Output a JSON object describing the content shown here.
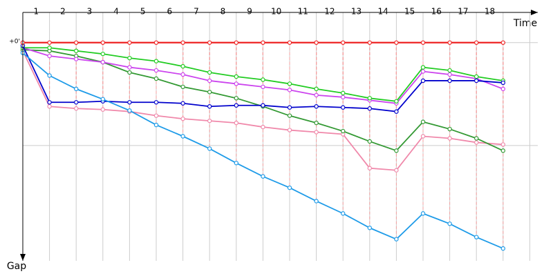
{
  "chart_data": {
    "type": "line",
    "x_label": "Time",
    "y_label": "Gap",
    "categories": [
      "1",
      "2",
      "3",
      "4",
      "5",
      "6",
      "7",
      "8",
      "9",
      "10",
      "11",
      "12",
      "13",
      "14",
      "15",
      "16",
      "17",
      "18"
    ],
    "x": [
      0,
      1,
      2,
      3,
      4,
      5,
      6,
      7,
      8,
      9,
      10,
      11,
      12,
      13,
      14,
      15,
      16,
      17,
      18
    ],
    "xlim": [
      0,
      19.3
    ],
    "xticks": [
      0,
      1,
      2,
      3,
      4,
      5,
      6,
      7,
      8,
      9,
      10,
      11,
      12,
      13,
      14,
      15,
      16,
      17,
      18,
      19
    ],
    "ylim": [
      -0.28,
      2.1
    ],
    "yticks": [
      {
        "value": 0,
        "label": "+0'"
      }
    ],
    "y_gridlines": [
      0,
      1
    ],
    "y_inverted": true,
    "series": [
      {
        "color": "#ee2222",
        "values": [
          0,
          0,
          0,
          0,
          0,
          0,
          0,
          0,
          0,
          0,
          0,
          0,
          0,
          0,
          0,
          0,
          0,
          0,
          0
        ]
      },
      {
        "color": "#1e9be8",
        "values": [
          0.1,
          0.32,
          0.45,
          0.55,
          0.66,
          0.8,
          0.91,
          1.03,
          1.17,
          1.3,
          1.41,
          1.54,
          1.66,
          1.8,
          1.91,
          1.66,
          1.76,
          1.89,
          2.0
        ]
      },
      {
        "color": "#0000cc",
        "values": [
          0.03,
          0.58,
          0.58,
          0.57,
          0.58,
          0.58,
          0.59,
          0.62,
          0.61,
          0.61,
          0.63,
          0.62,
          0.63,
          0.64,
          0.67,
          0.37,
          0.37,
          0.37,
          0.39
        ]
      },
      {
        "color": "#22cc22",
        "values": [
          0.05,
          0.05,
          0.08,
          0.11,
          0.15,
          0.18,
          0.23,
          0.29,
          0.33,
          0.36,
          0.4,
          0.45,
          0.49,
          0.54,
          0.57,
          0.24,
          0.27,
          0.33,
          0.37
        ]
      },
      {
        "color": "#cc44ee",
        "values": [
          0.05,
          0.13,
          0.16,
          0.19,
          0.24,
          0.27,
          0.31,
          0.37,
          0.4,
          0.43,
          0.46,
          0.51,
          0.53,
          0.56,
          0.59,
          0.28,
          0.31,
          0.35,
          0.45
        ]
      },
      {
        "color": "#339933",
        "values": [
          0.07,
          0.08,
          0.13,
          0.19,
          0.29,
          0.35,
          0.43,
          0.48,
          0.54,
          0.62,
          0.71,
          0.78,
          0.86,
          0.96,
          1.05,
          0.77,
          0.84,
          0.93,
          1.05
        ]
      },
      {
        "color": "#f088aa",
        "values": [
          0.08,
          0.62,
          0.64,
          0.65,
          0.67,
          0.71,
          0.74,
          0.76,
          0.78,
          0.82,
          0.85,
          0.87,
          0.89,
          1.22,
          1.24,
          0.91,
          0.93,
          0.97,
          0.99
        ]
      }
    ]
  }
}
